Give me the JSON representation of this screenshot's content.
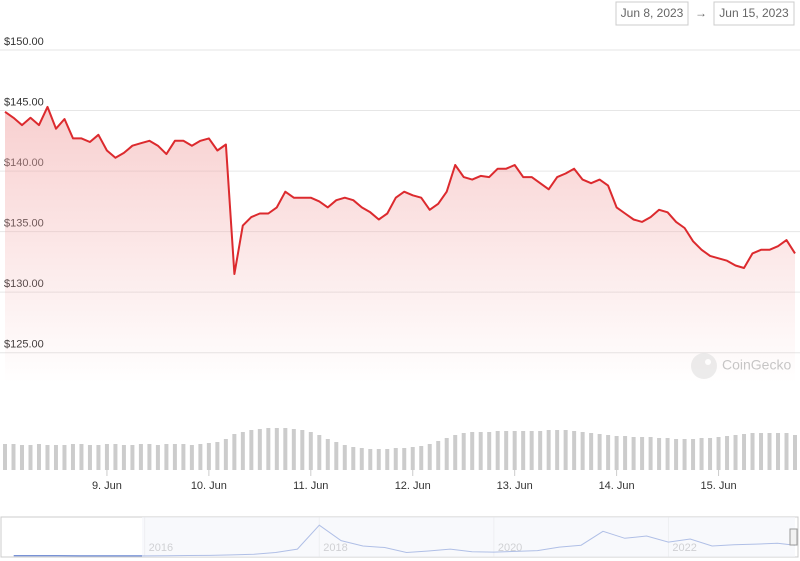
{
  "chart_data": {
    "type": "line",
    "range_from": "Jun 8, 2023",
    "range_arrow": "→",
    "range_to": "Jun 15, 2023",
    "watermark": "CoinGecko",
    "ylim": [
      122.5,
      150
    ],
    "yticks": [
      {
        "value": 125,
        "label": "$125.00"
      },
      {
        "value": 130,
        "label": "$130.00"
      },
      {
        "value": 135,
        "label": "$135.00"
      },
      {
        "value": 140,
        "label": "$140.00"
      },
      {
        "value": 145,
        "label": "$145.00"
      },
      {
        "value": 150,
        "label": "$150.00"
      }
    ],
    "grid": true,
    "xlim": [
      0,
      93
    ],
    "xticks": [
      {
        "value": 12,
        "label": "9. Jun"
      },
      {
        "value": 24,
        "label": "10. Jun"
      },
      {
        "value": 36,
        "label": "11. Jun"
      },
      {
        "value": 48,
        "label": "12. Jun"
      },
      {
        "value": 60,
        "label": "13. Jun"
      },
      {
        "value": 72,
        "label": "14. Jun"
      },
      {
        "value": 84,
        "label": "15. Jun"
      }
    ],
    "series": [
      {
        "color": "#dc2a2e",
        "values": [
          144.9,
          144.4,
          143.8,
          144.4,
          143.8,
          145.3,
          143.5,
          144.3,
          142.7,
          142.7,
          142.4,
          143.0,
          141.7,
          141.1,
          141.5,
          142.1,
          142.3,
          142.5,
          142.1,
          141.4,
          142.5,
          142.5,
          142.1,
          142.5,
          142.7,
          141.7,
          142.2,
          131.5,
          135.5,
          136.2,
          136.5,
          136.5,
          137.0,
          138.3,
          137.8,
          137.8,
          137.8,
          137.5,
          137.0,
          137.6,
          137.8,
          137.6,
          137.0,
          136.6,
          136.0,
          136.5,
          137.8,
          138.3,
          138.0,
          137.8,
          136.8,
          137.3,
          138.3,
          140.5,
          139.5,
          139.3,
          139.6,
          139.5,
          140.2,
          140.2,
          140.5,
          139.5,
          139.5,
          139.0,
          138.5,
          139.5,
          139.8,
          140.2,
          139.3,
          139.0,
          139.3,
          138.8,
          137.0,
          136.5,
          136.0,
          135.8,
          136.2,
          136.8,
          136.6,
          135.8,
          135.3,
          134.2,
          133.5,
          133.0,
          132.8,
          132.6,
          132.2,
          132.0,
          133.2,
          133.5,
          133.5,
          133.8,
          134.3,
          133.2
        ]
      }
    ],
    "volume": {
      "color": "#cccccc",
      "vlim": [
        0,
        60
      ],
      "values": [
        26,
        26,
        25,
        25,
        26,
        25,
        25,
        25,
        26,
        26,
        25,
        25,
        26,
        26,
        25,
        25,
        26,
        26,
        25,
        26,
        26,
        26,
        25,
        26,
        27,
        28,
        31,
        36,
        38,
        40,
        41,
        42,
        42,
        42,
        41,
        40,
        38,
        35,
        31,
        28,
        25,
        23,
        22,
        21,
        21,
        21,
        22,
        22,
        23,
        24,
        26,
        29,
        32,
        35,
        37,
        38,
        38,
        38,
        39,
        39,
        39,
        39,
        39,
        39,
        40,
        40,
        40,
        39,
        38,
        37,
        36,
        35,
        34,
        34,
        33,
        33,
        33,
        32,
        32,
        31,
        31,
        31,
        32,
        32,
        33,
        34,
        35,
        36,
        37,
        37,
        37,
        37,
        37,
        35
      ]
    },
    "navigator": {
      "color": "#4b6fc9",
      "xlim": [
        2014.4,
        2023.45
      ],
      "ylim": [
        0,
        480
      ],
      "xticks": [
        2016,
        2018,
        2020,
        2022
      ],
      "x": [
        2014.5,
        2014.75,
        2015,
        2015.25,
        2015.5,
        2015.75,
        2016,
        2016.25,
        2016.5,
        2016.75,
        2017,
        2017.25,
        2017.5,
        2017.75,
        2018,
        2018.25,
        2018.5,
        2018.75,
        2019,
        2019.25,
        2019.5,
        2019.75,
        2020,
        2020.25,
        2020.5,
        2020.75,
        2021,
        2021.25,
        2021.5,
        2021.75,
        2022,
        2022.25,
        2022.5,
        2022.75,
        2023,
        2023.25,
        2023.45
      ],
      "values": [
        3,
        4,
        2,
        1,
        1,
        1,
        1,
        2,
        6,
        8,
        14,
        22,
        45,
        90,
        400,
        200,
        130,
        110,
        45,
        65,
        90,
        55,
        50,
        60,
        70,
        115,
        140,
        320,
        230,
        260,
        180,
        220,
        130,
        145,
        155,
        165,
        140
      ]
    }
  }
}
